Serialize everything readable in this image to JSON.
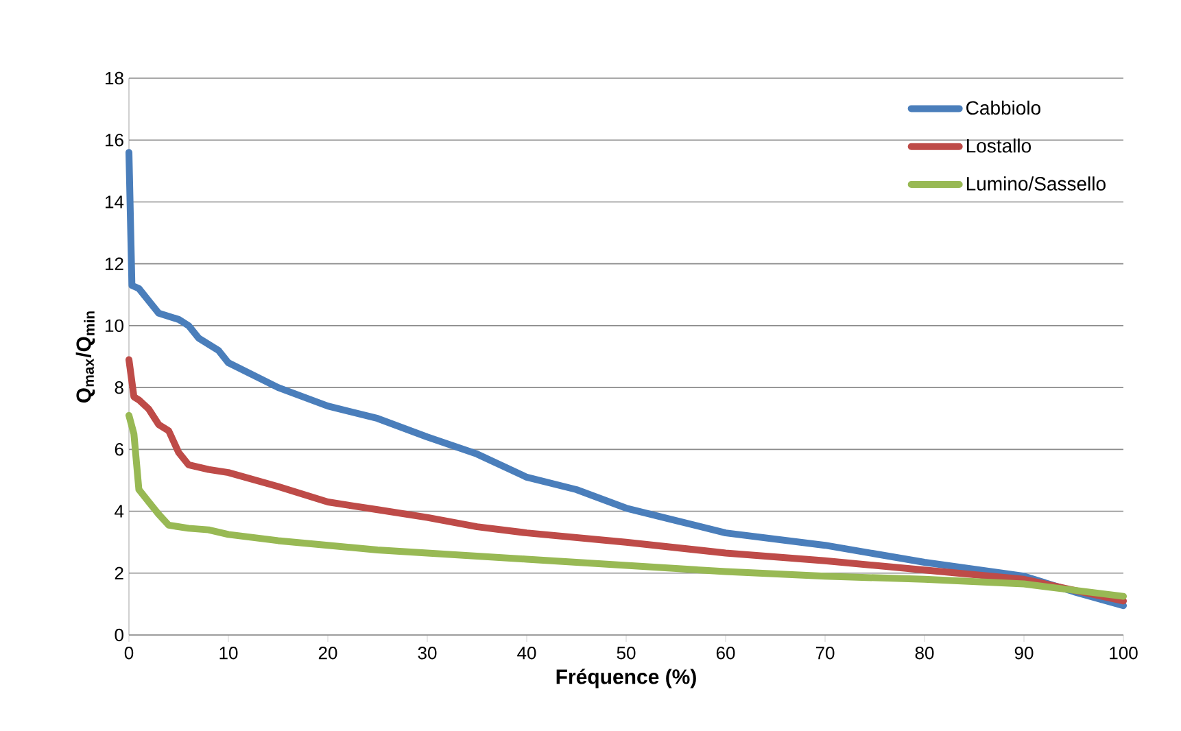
{
  "chart_data": {
    "type": "line",
    "xlabel": "Fréquence (%)",
    "ylabel": "Q$_{max}$/Q$_{min}$",
    "xlim": [
      0,
      100
    ],
    "ylim": [
      0,
      18
    ],
    "xticks": [
      0,
      10,
      20,
      30,
      40,
      50,
      60,
      70,
      80,
      90,
      100
    ],
    "yticks": [
      0,
      2,
      4,
      6,
      8,
      10,
      12,
      14,
      16,
      18
    ],
    "grid": "y",
    "legend": "top right",
    "marker": "none",
    "line_style": "solid",
    "series": [
      {
        "name": "Cabbiolo",
        "color": "#4a7ebb",
        "x": [
          0,
          0.3,
          1,
          2,
          3,
          5,
          6,
          7,
          8,
          9,
          10,
          15,
          20,
          25,
          30,
          35,
          40,
          45,
          50,
          55,
          60,
          70,
          80,
          90,
          95,
          100
        ],
        "values": [
          15.6,
          11.3,
          11.2,
          10.8,
          10.4,
          10.2,
          10.0,
          9.6,
          9.4,
          9.2,
          8.8,
          8.0,
          7.4,
          7.0,
          6.4,
          5.85,
          5.1,
          4.7,
          4.1,
          3.7,
          3.3,
          2.9,
          2.35,
          1.9,
          1.4,
          0.95
        ]
      },
      {
        "name": "Lostallo",
        "color": "#be4b48",
        "x": [
          0,
          0.5,
          1,
          2,
          3,
          4,
          5,
          6,
          8,
          10,
          15,
          20,
          25,
          30,
          35,
          40,
          50,
          60,
          70,
          80,
          90,
          95,
          100
        ],
        "values": [
          8.9,
          7.7,
          7.6,
          7.3,
          6.8,
          6.6,
          5.9,
          5.5,
          5.35,
          5.25,
          4.8,
          4.3,
          4.05,
          3.8,
          3.5,
          3.3,
          3.0,
          2.65,
          2.4,
          2.1,
          1.8,
          1.45,
          1.1
        ]
      },
      {
        "name": "Lumino/Sassello",
        "color": "#98b954",
        "x": [
          0,
          0.5,
          1,
          2,
          3,
          4,
          6,
          8,
          10,
          15,
          20,
          25,
          30,
          40,
          50,
          60,
          70,
          80,
          90,
          95,
          100
        ],
        "values": [
          7.1,
          6.5,
          4.7,
          4.3,
          3.9,
          3.55,
          3.45,
          3.4,
          3.25,
          3.05,
          2.9,
          2.75,
          2.65,
          2.45,
          2.25,
          2.05,
          1.9,
          1.8,
          1.65,
          1.45,
          1.25
        ]
      }
    ]
  }
}
